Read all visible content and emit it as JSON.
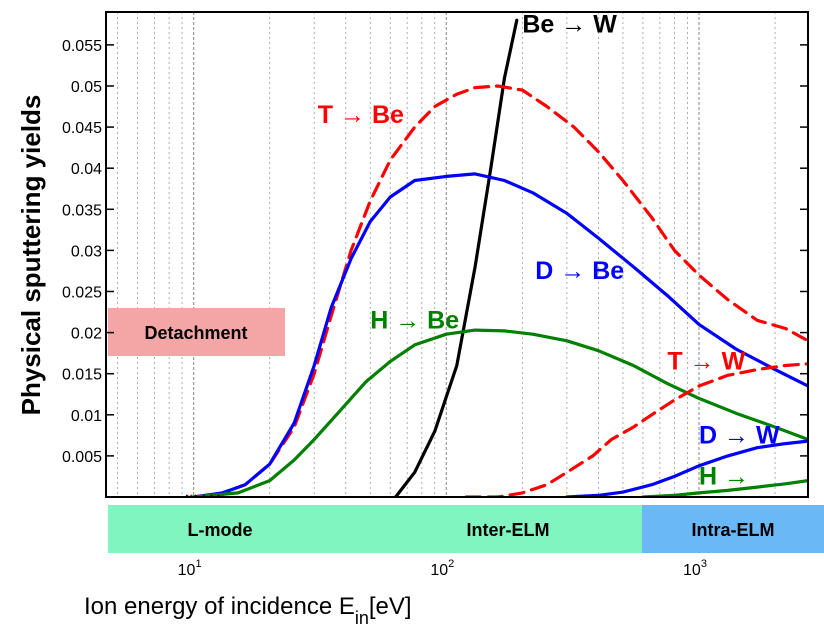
{
  "chart_data": {
    "type": "line",
    "xscale": "log",
    "xlim": [
      4.5,
      2700
    ],
    "ylim": [
      0,
      0.059
    ],
    "ylabel": "Physical sputtering yields",
    "xlabel_main": "Ion energy of incidence E",
    "xlabel_sub": "in",
    "xlabel_unit": "[eV]",
    "grid": "vertical dashed",
    "yticks": [
      {
        "value": 0.005,
        "label": "0.005"
      },
      {
        "value": 0.01,
        "label": "0.01"
      },
      {
        "value": 0.015,
        "label": "0.015"
      },
      {
        "value": 0.02,
        "label": "0.02"
      },
      {
        "value": 0.025,
        "label": "0.025"
      },
      {
        "value": 0.03,
        "label": "0.03"
      },
      {
        "value": 0.035,
        "label": "0.035"
      },
      {
        "value": 0.04,
        "label": "0.04"
      },
      {
        "value": 0.045,
        "label": "0.045"
      },
      {
        "value": 0.05,
        "label": "0.05"
      },
      {
        "value": 0.055,
        "label": "0.055"
      }
    ],
    "xticks": [
      {
        "value": 10,
        "base": "10",
        "exp": "1"
      },
      {
        "value": 100,
        "base": "10",
        "exp": "2"
      },
      {
        "value": 1000,
        "base": "10",
        "exp": "3"
      }
    ],
    "series": [
      {
        "name": "Be → W",
        "color": "#000000",
        "dash": "solid",
        "points": [
          [
            63,
            0
          ],
          [
            75,
            0.003
          ],
          [
            90,
            0.008
          ],
          [
            110,
            0.016
          ],
          [
            130,
            0.028
          ],
          [
            150,
            0.04
          ],
          [
            170,
            0.051
          ],
          [
            190,
            0.058
          ]
        ]
      },
      {
        "name": "T → Be",
        "color": "#ff0000",
        "dash": "dashed",
        "points": [
          [
            10,
            0
          ],
          [
            13,
            0.0005
          ],
          [
            16,
            0.0015
          ],
          [
            20,
            0.004
          ],
          [
            25,
            0.0085
          ],
          [
            30,
            0.015
          ],
          [
            35,
            0.022
          ],
          [
            42,
            0.03
          ],
          [
            50,
            0.036
          ],
          [
            60,
            0.041
          ],
          [
            75,
            0.045
          ],
          [
            90,
            0.0475
          ],
          [
            110,
            0.049
          ],
          [
            130,
            0.0498
          ],
          [
            160,
            0.05
          ],
          [
            200,
            0.0495
          ],
          [
            250,
            0.0475
          ],
          [
            320,
            0.045
          ],
          [
            400,
            0.042
          ],
          [
            500,
            0.0385
          ],
          [
            650,
            0.034
          ],
          [
            800,
            0.03
          ],
          [
            1000,
            0.027
          ],
          [
            1300,
            0.024
          ],
          [
            1700,
            0.0215
          ],
          [
            2200,
            0.0205
          ],
          [
            2700,
            0.019
          ]
        ]
      },
      {
        "name": "D → Be",
        "color": "#0000ff",
        "dash": "solid",
        "points": [
          [
            10,
            0
          ],
          [
            13,
            0.0005
          ],
          [
            16,
            0.0015
          ],
          [
            20,
            0.004
          ],
          [
            25,
            0.009
          ],
          [
            30,
            0.016
          ],
          [
            35,
            0.023
          ],
          [
            42,
            0.029
          ],
          [
            50,
            0.0335
          ],
          [
            60,
            0.0365
          ],
          [
            75,
            0.0385
          ],
          [
            100,
            0.039
          ],
          [
            130,
            0.0393
          ],
          [
            170,
            0.0385
          ],
          [
            220,
            0.037
          ],
          [
            300,
            0.0345
          ],
          [
            400,
            0.0315
          ],
          [
            550,
            0.028
          ],
          [
            750,
            0.0245
          ],
          [
            1000,
            0.021
          ],
          [
            1400,
            0.018
          ],
          [
            2000,
            0.0155
          ],
          [
            2700,
            0.0135
          ]
        ]
      },
      {
        "name": "H → Be",
        "color": "#008000",
        "dash": "solid",
        "points": [
          [
            10,
            0
          ],
          [
            15,
            0.0005
          ],
          [
            20,
            0.002
          ],
          [
            25,
            0.0045
          ],
          [
            30,
            0.007
          ],
          [
            38,
            0.0105
          ],
          [
            48,
            0.014
          ],
          [
            60,
            0.0165
          ],
          [
            75,
            0.0185
          ],
          [
            100,
            0.0198
          ],
          [
            130,
            0.0203
          ],
          [
            170,
            0.0202
          ],
          [
            220,
            0.0198
          ],
          [
            300,
            0.019
          ],
          [
            400,
            0.0178
          ],
          [
            550,
            0.016
          ],
          [
            750,
            0.0138
          ],
          [
            1000,
            0.012
          ],
          [
            1400,
            0.0102
          ],
          [
            2000,
            0.0085
          ],
          [
            2700,
            0.007
          ]
        ]
      },
      {
        "name": "T → W",
        "color": "#ff0000",
        "dash": "dashed",
        "points": [
          [
            120,
            0
          ],
          [
            160,
            0
          ],
          [
            200,
            0.0005
          ],
          [
            250,
            0.0015
          ],
          [
            300,
            0.003
          ],
          [
            380,
            0.005
          ],
          [
            450,
            0.007
          ],
          [
            550,
            0.0085
          ],
          [
            650,
            0.01
          ],
          [
            800,
            0.0118
          ],
          [
            1000,
            0.0135
          ],
          [
            1300,
            0.0148
          ],
          [
            1700,
            0.0155
          ],
          [
            2200,
            0.016
          ],
          [
            2700,
            0.0162
          ]
        ]
      },
      {
        "name": "D → W",
        "color": "#0000ff",
        "dash": "solid",
        "points": [
          [
            300,
            0
          ],
          [
            400,
            0.0002
          ],
          [
            500,
            0.0006
          ],
          [
            650,
            0.0015
          ],
          [
            800,
            0.0025
          ],
          [
            1000,
            0.0038
          ],
          [
            1300,
            0.005
          ],
          [
            1700,
            0.006
          ],
          [
            2200,
            0.0065
          ],
          [
            2700,
            0.0068
          ]
        ]
      },
      {
        "name": "H → W",
        "color": "#008000",
        "dash": "solid",
        "points": [
          [
            600,
            0
          ],
          [
            800,
            0.0002
          ],
          [
            1000,
            0.0005
          ],
          [
            1300,
            0.0008
          ],
          [
            1700,
            0.0012
          ],
          [
            2200,
            0.0016
          ],
          [
            2700,
            0.002
          ]
        ]
      }
    ],
    "annotations": [
      {
        "text": "Be → W",
        "color": "#000000",
        "x": 200,
        "y": 0.0565
      },
      {
        "text": "T → Be",
        "color": "#ff0000",
        "x": 31,
        "y": 0.0455
      },
      {
        "text": "D → Be",
        "color": "#0000ff",
        "x": 225,
        "y": 0.0265
      },
      {
        "text": "H → Be",
        "color": "#008000",
        "x": 50,
        "y": 0.0205
      },
      {
        "text": "T → W",
        "color": "#ff0000",
        "x": 750,
        "y": 0.0155
      },
      {
        "text": "D → W",
        "color": "#0000ff",
        "x": 1000,
        "y": 0.0065
      },
      {
        "text": "H →",
        "color": "#008000",
        "x": 1000,
        "y": 0.0015
      }
    ],
    "detachment_label": "Detachment",
    "detachment_color": "#f4a6a6",
    "regimes": [
      {
        "label": "L-mode",
        "color": "#80f5c0"
      },
      {
        "label": "Inter-ELM",
        "color": "#80f5c0"
      },
      {
        "label": "Intra-ELM",
        "color": "#6ab8f5"
      }
    ]
  }
}
